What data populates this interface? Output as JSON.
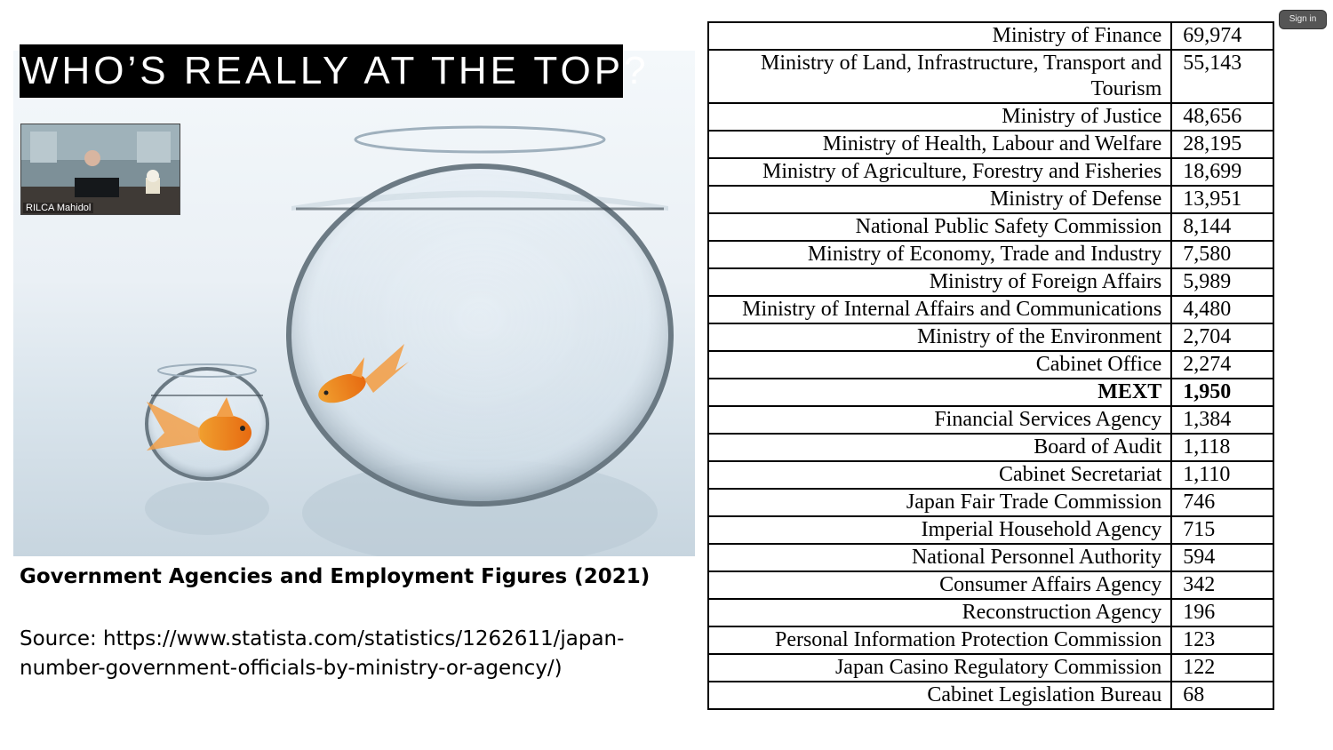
{
  "slide": {
    "title": "WHO’S REALLY AT THE TOP?",
    "caption": "Government Agencies and Employment Figures (2021)",
    "source": "Source: https://www.statista.com/statistics/1262611/japan-number-government-officials-by-ministry-or-agency/)"
  },
  "video_thumbnail": {
    "name": "RILCA Mahidol"
  },
  "signin_label": "Sign in",
  "table": {
    "rows": [
      {
        "name": "Ministry of Finance",
        "count": "69,974"
      },
      {
        "name": "Ministry of Land, Infrastructure, Transport and Tourism",
        "count": "55,143"
      },
      {
        "name": "Ministry of Justice",
        "count": "48,656"
      },
      {
        "name": "Ministry of Health, Labour and Welfare",
        "count": "28,195"
      },
      {
        "name": "Ministry of Agriculture, Forestry and Fisheries",
        "count": "18,699"
      },
      {
        "name": "Ministry of Defense",
        "count": "13,951"
      },
      {
        "name": "National Public Safety Commission",
        "count": "8,144"
      },
      {
        "name": "Ministry of Economy, Trade and Industry",
        "count": "7,580"
      },
      {
        "name": "Ministry of Foreign Affairs",
        "count": "5,989"
      },
      {
        "name": "Ministry of Internal Affairs and Communications",
        "count": "4,480"
      },
      {
        "name": "Ministry of the Environment",
        "count": "2,704"
      },
      {
        "name": "Cabinet Office",
        "count": "2,274"
      },
      {
        "name": "MEXT",
        "count": "1,950",
        "bold": true
      },
      {
        "name": "Financial Services Agency",
        "count": "1,384"
      },
      {
        "name": "Board of Audit",
        "count": "1,118"
      },
      {
        "name": "Cabinet Secretariat",
        "count": "1,110"
      },
      {
        "name": "Japan Fair Trade Commission",
        "count": "746"
      },
      {
        "name": "Imperial Household Agency",
        "count": "715"
      },
      {
        "name": "National Personnel Authority",
        "count": "594"
      },
      {
        "name": "Consumer Affairs Agency",
        "count": "342"
      },
      {
        "name": "Reconstruction Agency",
        "count": "196"
      },
      {
        "name": "Personal Information Protection Commission",
        "count": "123"
      },
      {
        "name": "Japan Casino Regulatory Commission",
        "count": "122"
      },
      {
        "name": "Cabinet Legislation Bureau",
        "count": "68"
      }
    ]
  }
}
